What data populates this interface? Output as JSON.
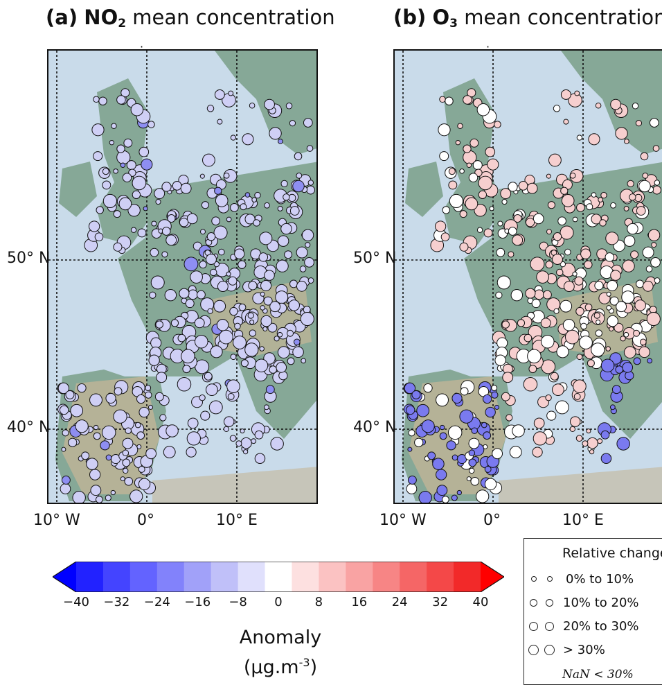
{
  "panels": [
    {
      "title_prefix": "(a)",
      "species": "NO",
      "species_sub": "2",
      "title_suffix": "mean concentration"
    },
    {
      "title_prefix": "(b)",
      "species": "O",
      "species_sub": "3",
      "title_suffix": "mean concentration"
    }
  ],
  "axis_ticks": {
    "lon": [
      "10° W",
      "0°",
      "10° E"
    ],
    "lat": [
      "50° N",
      "40° N"
    ]
  },
  "colorbar": {
    "title": "Anomaly",
    "unit_base": "(µg.m",
    "unit_sup": "-3",
    "unit_end": ")",
    "ticks": [
      "−40",
      "−32",
      "−24",
      "−16",
      "−8",
      "0",
      "8",
      "16",
      "24",
      "32",
      "40"
    ],
    "colors": [
      "#0000ff",
      "#2222ff",
      "#4444ff",
      "#6363ff",
      "#8282fb",
      "#a1a1f9",
      "#c0c0f9",
      "#e0e0fc",
      "#ffffff",
      "#fde0e0",
      "#fbc2c2",
      "#f9a3a3",
      "#f78585",
      "#f56666",
      "#f44848",
      "#f22929",
      "#ff0000"
    ]
  },
  "legend": {
    "title": "Relative change",
    "rows": [
      "0% to 10%",
      "10% to 20%",
      "20% to 30%",
      "> 30%"
    ],
    "nan_label": "NaN < 30%"
  },
  "colors": {
    "sea": "#c9dbea",
    "land": "#86a897",
    "relief": "#c4b697",
    "no2_marker": "#cfcff5",
    "o3_marker_north": "#f6cfcf",
    "o3_marker_south": "#7a7aef"
  }
}
